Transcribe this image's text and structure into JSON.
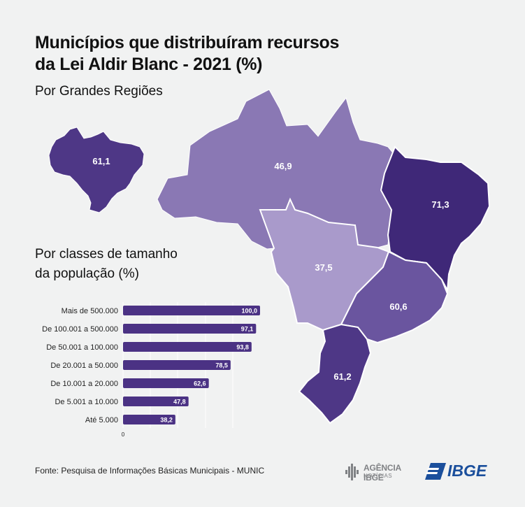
{
  "title_line1": "Municípios que distribuíram recursos",
  "title_line2": "da Lei Aldir Blanc - 2021 (%)",
  "subtitle": "Por Grandes Regiões",
  "size_title_line1": "Por classes de tamanho",
  "size_title_line2": "da população (%)",
  "source": "Fonte: Pesquisa de Informações Básicas Municipais - MUNIC",
  "logo_agencia_line1": "AGÊNCIA IBGE",
  "logo_agencia_line2": "NOTÍCIAS",
  "logo_ibge": "IBGE",
  "colors": {
    "background": "#f1f2f2",
    "bar": "#4b3284",
    "north": "#8a78b4",
    "northeast": "#3f2878",
    "central_west": "#a99acb",
    "southeast": "#6a559f",
    "south": "#4e3786",
    "brazil": "#4e3786"
  },
  "chart_data": [
    {
      "type": "map",
      "title": "Por Grandes Regiões",
      "regions": [
        {
          "region": "Norte",
          "value": 46.9,
          "label": "46,9"
        },
        {
          "region": "Nordeste",
          "value": 71.3,
          "label": "71,3"
        },
        {
          "region": "Centro-Oeste",
          "value": 37.5,
          "label": "37,5"
        },
        {
          "region": "Sudeste",
          "value": 60.6,
          "label": "60,6"
        },
        {
          "region": "Sul",
          "value": 61.2,
          "label": "61,2"
        }
      ],
      "total": {
        "region": "Brasil",
        "value": 61.1,
        "label": "61,1"
      }
    },
    {
      "type": "bar",
      "orientation": "horizontal",
      "title": "Por classes de tamanho da população (%)",
      "categories": [
        "Mais de 500.000",
        "De 100.001 a 500.000",
        "De 50.001 a 100.000",
        "De 20.001 a 50.000",
        "De 10.001 a 20.000",
        "De 5.001 a 10.000",
        "Até 5.000"
      ],
      "values": [
        100.0,
        97.1,
        93.8,
        78.5,
        62.6,
        47.8,
        38.2
      ],
      "value_labels": [
        "100,0",
        "97,1",
        "93,8",
        "78,5",
        "62,6",
        "47,8",
        "38,2"
      ],
      "x_tick_labels": [
        "0"
      ],
      "xlim": [
        0,
        100
      ],
      "grid": true
    }
  ]
}
